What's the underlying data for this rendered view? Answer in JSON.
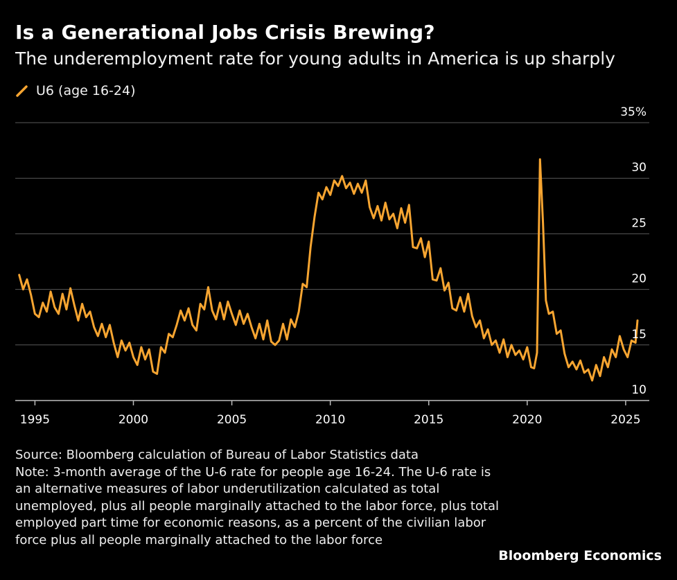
{
  "header": {
    "title": "Is a Generational Jobs Crisis Brewing?",
    "subtitle": "The underemployment rate for young adults in America is up sharply"
  },
  "legend": {
    "label": "U6 (age 16-24)",
    "icon": "line-swatch-icon"
  },
  "colors": {
    "background": "#000000",
    "series": "#f7a531",
    "grid": "#5a5a5a",
    "text": "#ffffff"
  },
  "footer": {
    "source": "Source: Bloomberg calculation of Bureau of Labor Statistics data",
    "note": "Note: 3-month average of the U-6 rate for people age 16-24. The U-6 rate is an alternative measures of labor underutilization calculated as total unemployed, plus all people marginally attached to the labor force, plus total employed part time for economic reasons, as a percent of the civilian labor force plus all people marginally attached to the labor force",
    "brand": "Bloomberg Economics"
  },
  "chart_data": {
    "type": "line",
    "title": "Is a Generational Jobs Crisis Brewing?",
    "subtitle": "The underemployment rate for young adults in America is up sharply",
    "xlabel": "",
    "ylabel": "",
    "xlim": [
      1994,
      2026.2
    ],
    "ylim": [
      10,
      35
    ],
    "x_ticks": [
      1995,
      2000,
      2005,
      2010,
      2015,
      2020,
      2025
    ],
    "x_tick_labels": [
      "1995",
      "2000",
      "2005",
      "2010",
      "2015",
      "2020",
      "2025"
    ],
    "y_ticks": [
      10,
      15,
      20,
      25,
      30,
      35
    ],
    "y_tick_labels": [
      "10",
      "15",
      "20",
      "25",
      "30",
      "35%"
    ],
    "grid": true,
    "y_axis_side": "right",
    "series": [
      {
        "name": "U6 (age 16-24)",
        "x": [
          1994.2,
          1994.4,
          1994.6,
          1994.8,
          1995.0,
          1995.2,
          1995.4,
          1995.6,
          1995.8,
          1996.0,
          1996.2,
          1996.4,
          1996.6,
          1996.8,
          1997.0,
          1997.2,
          1997.4,
          1997.6,
          1997.8,
          1998.0,
          1998.2,
          1998.4,
          1998.6,
          1998.8,
          1999.0,
          1999.2,
          1999.4,
          1999.6,
          1999.8,
          2000.0,
          2000.2,
          2000.4,
          2000.6,
          2000.8,
          2001.0,
          2001.2,
          2001.4,
          2001.6,
          2001.8,
          2002.0,
          2002.2,
          2002.4,
          2002.6,
          2002.8,
          2003.0,
          2003.2,
          2003.4,
          2003.6,
          2003.8,
          2004.0,
          2004.2,
          2004.4,
          2004.6,
          2004.8,
          2005.0,
          2005.2,
          2005.4,
          2005.6,
          2005.8,
          2006.0,
          2006.2,
          2006.4,
          2006.6,
          2006.8,
          2007.0,
          2007.2,
          2007.4,
          2007.6,
          2007.8,
          2008.0,
          2008.2,
          2008.4,
          2008.6,
          2008.8,
          2009.0,
          2009.2,
          2009.4,
          2009.6,
          2009.8,
          2010.0,
          2010.2,
          2010.4,
          2010.6,
          2010.8,
          2011.0,
          2011.2,
          2011.4,
          2011.6,
          2011.8,
          2012.0,
          2012.2,
          2012.4,
          2012.6,
          2012.8,
          2013.0,
          2013.2,
          2013.4,
          2013.6,
          2013.8,
          2014.0,
          2014.2,
          2014.4,
          2014.6,
          2014.8,
          2015.0,
          2015.2,
          2015.4,
          2015.6,
          2015.8,
          2016.0,
          2016.2,
          2016.4,
          2016.6,
          2016.8,
          2017.0,
          2017.2,
          2017.4,
          2017.6,
          2017.8,
          2018.0,
          2018.2,
          2018.4,
          2018.6,
          2018.8,
          2019.0,
          2019.2,
          2019.4,
          2019.6,
          2019.8,
          2020.0,
          2020.2,
          2020.35,
          2020.5,
          2020.65,
          2020.8,
          2020.95,
          2021.1,
          2021.3,
          2021.5,
          2021.7,
          2021.9,
          2022.1,
          2022.3,
          2022.5,
          2022.7,
          2022.9,
          2023.1,
          2023.3,
          2023.5,
          2023.7,
          2023.9,
          2024.1,
          2024.3,
          2024.5,
          2024.7,
          2024.9,
          2025.1,
          2025.3,
          2025.5,
          2025.6
        ],
        "values": [
          21.3,
          20.0,
          20.9,
          19.5,
          17.8,
          17.5,
          18.8,
          18.0,
          19.8,
          18.4,
          17.8,
          19.6,
          18.2,
          20.1,
          18.6,
          17.2,
          18.7,
          17.5,
          18.0,
          16.6,
          15.8,
          16.9,
          15.7,
          16.8,
          15.2,
          13.9,
          15.4,
          14.5,
          15.2,
          13.9,
          13.2,
          14.8,
          13.7,
          14.6,
          12.6,
          12.4,
          14.8,
          14.3,
          16.0,
          15.7,
          16.8,
          18.1,
          17.2,
          18.3,
          16.8,
          16.3,
          18.7,
          18.2,
          20.2,
          18.1,
          17.3,
          18.8,
          17.3,
          18.9,
          17.8,
          16.8,
          18.1,
          16.9,
          17.8,
          16.6,
          15.6,
          16.9,
          15.5,
          17.2,
          15.3,
          15.0,
          15.4,
          16.9,
          15.5,
          17.3,
          16.6,
          18.0,
          20.5,
          20.2,
          23.8,
          26.5,
          28.7,
          28.1,
          29.2,
          28.5,
          29.8,
          29.3,
          30.2,
          29.1,
          29.6,
          28.6,
          29.5,
          28.7,
          29.8,
          27.4,
          26.4,
          27.5,
          26.2,
          27.8,
          26.3,
          26.8,
          25.5,
          27.3,
          26.0,
          27.6,
          23.8,
          23.7,
          24.6,
          22.9,
          24.3,
          20.9,
          20.8,
          21.9,
          19.9,
          20.6,
          18.3,
          18.1,
          19.3,
          18.0,
          19.6,
          17.6,
          16.6,
          17.2,
          15.6,
          16.4,
          15.0,
          15.4,
          14.3,
          15.5,
          13.9,
          15.0,
          14.1,
          14.5,
          13.7,
          14.8,
          13.0,
          12.9,
          14.3,
          31.7,
          26.0,
          19.0,
          17.8,
          18.0,
          16.0,
          16.3,
          14.2,
          13.0,
          13.5,
          12.8,
          13.6,
          12.5,
          12.8,
          11.8,
          13.2,
          12.2,
          13.9,
          13.0,
          14.6,
          13.9,
          15.8,
          14.6,
          13.9,
          15.4,
          15.2,
          17.2
        ]
      }
    ]
  }
}
